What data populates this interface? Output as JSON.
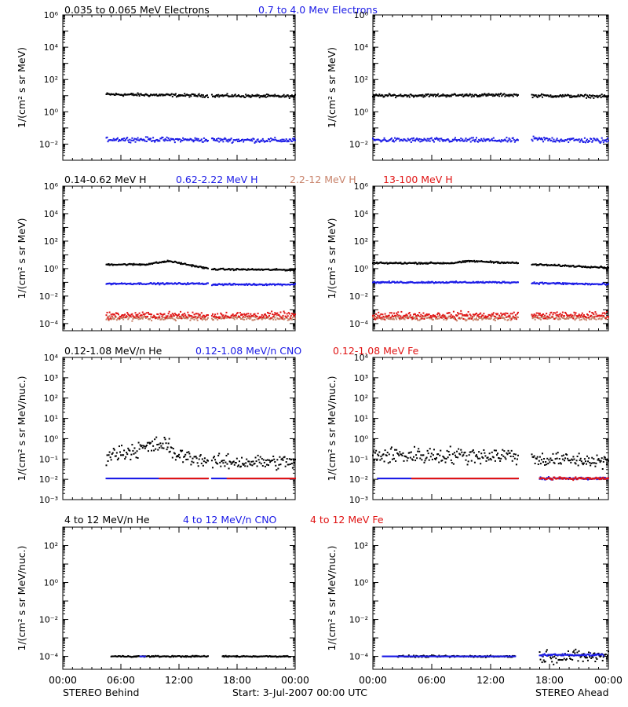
{
  "colors": {
    "black": "#000000",
    "blue": "#1a1ae6",
    "salmon": "#c8826a",
    "red": "#e01414"
  },
  "rows": [
    {
      "labels": [
        {
          "text": "0.035 to 0.065 MeV Electrons",
          "color": "black"
        },
        {
          "text": "0.7 to 4.0 Mev Electrons",
          "color": "blue"
        }
      ],
      "ylabel": "1/(cm² s sr MeV)"
    },
    {
      "labels": [
        {
          "text": "0.14-0.62 MeV H",
          "color": "black"
        },
        {
          "text": "0.62-2.22 MeV H",
          "color": "blue"
        },
        {
          "text": "2.2-12 MeV H",
          "color": "salmon"
        },
        {
          "text": "13-100 MeV H",
          "color": "red"
        }
      ],
      "ylabel": "1/(cm² s sr MeV)"
    },
    {
      "labels": [
        {
          "text": "0.12-1.08 MeV/n He",
          "color": "black"
        },
        {
          "text": "0.12-1.08 MeV/n CNO",
          "color": "blue"
        },
        {
          "text": "0.12-1.08 MeV Fe",
          "color": "red"
        }
      ],
      "ylabel": "1/(cm² s sr MeV/nuc.)"
    },
    {
      "labels": [
        {
          "text": "4 to 12 MeV/n He",
          "color": "black"
        },
        {
          "text": "4 to 12 MeV/n CNO",
          "color": "blue"
        },
        {
          "text": "4 to 12 MeV Fe",
          "color": "red"
        }
      ],
      "ylabel": "1/(cm² s sr MeV/nuc.)"
    }
  ],
  "x_ticks": [
    "00:00",
    "06:00",
    "12:00",
    "18:00",
    "00:00"
  ],
  "footer": {
    "left": "STEREO Behind",
    "center": "Start:  3-Jul-2007 00:00 UTC",
    "right": "STEREO Ahead"
  },
  "chart_data": [
    {
      "type": "scatter",
      "panel": "STEREO Behind electrons",
      "log_y": true,
      "ylim": [
        0.001,
        1000000
      ],
      "xlim": [
        0,
        24
      ],
      "y_ticks": [
        "10⁻²",
        "10⁰",
        "10²",
        "10⁴",
        "10⁶"
      ],
      "series": [
        {
          "name": "0.035 to 0.065 MeV Electrons",
          "color": "black",
          "segments": [
            {
              "x": [
                4.5,
                15.0
              ],
              "y": [
                12,
                10
              ],
              "scatter": 0.08
            },
            {
              "x": [
                15.4,
                24.0
              ],
              "y": [
                10,
                9
              ],
              "scatter": 0.08
            }
          ]
        },
        {
          "name": "0.7 to 4.0 Mev Electrons",
          "color": "blue",
          "segments": [
            {
              "x": [
                4.5,
                15.0
              ],
              "y": [
                0.02,
                0.018
              ],
              "scatter": 0.12
            },
            {
              "x": [
                15.4,
                24.0
              ],
              "y": [
                0.018,
                0.017
              ],
              "scatter": 0.12
            }
          ]
        }
      ]
    },
    {
      "type": "scatter",
      "panel": "STEREO Ahead electrons",
      "log_y": true,
      "ylim": [
        0.001,
        1000000
      ],
      "xlim": [
        0,
        24
      ],
      "y_ticks": [
        "10⁻²",
        "10⁰",
        "10²",
        "10⁴",
        "10⁶"
      ],
      "series": [
        {
          "name": "0.035 to 0.065 MeV Electrons",
          "color": "black",
          "segments": [
            {
              "x": [
                0.0,
                14.8
              ],
              "y": [
                10,
                11
              ],
              "scatter": 0.08
            },
            {
              "x": [
                16.2,
                24.0
              ],
              "y": [
                10,
                9
              ],
              "scatter": 0.08
            }
          ]
        },
        {
          "name": "0.7 to 4.0 Mev Electrons",
          "color": "blue",
          "segments": [
            {
              "x": [
                0.0,
                14.8
              ],
              "y": [
                0.018,
                0.017
              ],
              "scatter": 0.12
            },
            {
              "x": [
                16.2,
                24.0
              ],
              "y": [
                0.02,
                0.016
              ],
              "scatter": 0.14
            }
          ]
        }
      ]
    },
    {
      "type": "scatter",
      "panel": "STEREO Behind protons",
      "log_y": true,
      "ylim": [
        3e-05,
        1000000
      ],
      "xlim": [
        0,
        24
      ],
      "y_ticks": [
        "10⁻⁴",
        "10⁻²",
        "10⁰",
        "10²",
        "10⁴",
        "10⁶"
      ],
      "series": [
        {
          "name": "0.14-0.62 MeV H",
          "color": "black",
          "segments": [
            {
              "x": [
                4.5,
                8.5
              ],
              "y": [
                2.0,
                2.0
              ],
              "scatter": 0.05
            },
            {
              "x": [
                8.5,
                11.0
              ],
              "y": [
                2.0,
                3.5
              ],
              "scatter": 0.05
            },
            {
              "x": [
                11.0,
                15.0
              ],
              "y": [
                3.5,
                1.0
              ],
              "scatter": 0.05
            },
            {
              "x": [
                15.4,
                24.0
              ],
              "y": [
                0.9,
                0.8
              ],
              "scatter": 0.05
            }
          ]
        },
        {
          "name": "0.62-2.22 MeV H",
          "color": "blue",
          "segments": [
            {
              "x": [
                4.5,
                15.0
              ],
              "y": [
                0.08,
                0.08
              ],
              "scatter": 0.05
            },
            {
              "x": [
                15.4,
                24.0
              ],
              "y": [
                0.07,
                0.07
              ],
              "scatter": 0.05
            }
          ]
        },
        {
          "name": "2.2-12 MeV H",
          "color": "salmon",
          "segments": [
            {
              "x": [
                4.5,
                15.0
              ],
              "y": [
                0.00025,
                0.00025
              ],
              "scatter": 0.15
            },
            {
              "x": [
                15.4,
                24.0
              ],
              "y": [
                0.00025,
                0.00025
              ],
              "scatter": 0.15
            }
          ]
        },
        {
          "name": "13-100 MeV H",
          "color": "red",
          "segments": [
            {
              "x": [
                4.5,
                15.0
              ],
              "y": [
                0.0004,
                0.0004
              ],
              "scatter": 0.2
            },
            {
              "x": [
                15.4,
                24.0
              ],
              "y": [
                0.0004,
                0.0004
              ],
              "scatter": 0.2
            }
          ]
        }
      ]
    },
    {
      "type": "scatter",
      "panel": "STEREO Ahead protons",
      "log_y": true,
      "ylim": [
        3e-05,
        1000000
      ],
      "xlim": [
        0,
        24
      ],
      "y_ticks": [
        "10⁻⁴",
        "10⁻²",
        "10⁰",
        "10²",
        "10⁴",
        "10⁶"
      ],
      "series": [
        {
          "name": "0.14-0.62 MeV H",
          "color": "black",
          "segments": [
            {
              "x": [
                0.0,
                8.0
              ],
              "y": [
                2.5,
                2.5
              ],
              "scatter": 0.05
            },
            {
              "x": [
                8.0,
                10.0
              ],
              "y": [
                2.5,
                3.5
              ],
              "scatter": 0.05
            },
            {
              "x": [
                10.0,
                14.8
              ],
              "y": [
                3.5,
                2.5
              ],
              "scatter": 0.05
            },
            {
              "x": [
                16.2,
                24.0
              ],
              "y": [
                2.0,
                1.2
              ],
              "scatter": 0.05
            }
          ]
        },
        {
          "name": "0.62-2.22 MeV H",
          "color": "blue",
          "segments": [
            {
              "x": [
                0.0,
                14.8
              ],
              "y": [
                0.1,
                0.1
              ],
              "scatter": 0.05
            },
            {
              "x": [
                16.2,
                24.0
              ],
              "y": [
                0.09,
                0.07
              ],
              "scatter": 0.06
            }
          ]
        },
        {
          "name": "2.2-12 MeV H",
          "color": "salmon",
          "segments": [
            {
              "x": [
                0.0,
                14.8
              ],
              "y": [
                0.00025,
                0.00025
              ],
              "scatter": 0.15
            },
            {
              "x": [
                16.2,
                24.0
              ],
              "y": [
                0.00025,
                0.00025
              ],
              "scatter": 0.15
            }
          ]
        },
        {
          "name": "13-100 MeV H",
          "color": "red",
          "segments": [
            {
              "x": [
                0.0,
                14.8
              ],
              "y": [
                0.0004,
                0.0004
              ],
              "scatter": 0.22
            },
            {
              "x": [
                16.2,
                24.0
              ],
              "y": [
                0.0004,
                0.0004
              ],
              "scatter": 0.22
            }
          ]
        }
      ]
    },
    {
      "type": "scatter",
      "panel": "STEREO Behind heavy ions low",
      "log_y": true,
      "ylim": [
        0.001,
        10000
      ],
      "xlim": [
        0,
        24
      ],
      "y_ticks": [
        "10⁻³",
        "10⁻²",
        "10⁻¹",
        "10⁰",
        "10¹",
        "10²",
        "10³",
        "10⁴"
      ],
      "series": [
        {
          "name": "0.12-1.08 MeV/n He",
          "color": "black",
          "segments": [
            {
              "x": [
                4.5,
                11.0
              ],
              "y": [
                0.15,
                0.6
              ],
              "scatter": 0.35
            },
            {
              "x": [
                11.0,
                15.0
              ],
              "y": [
                0.2,
                0.08
              ],
              "scatter": 0.3
            },
            {
              "x": [
                15.4,
                24.0
              ],
              "y": [
                0.07,
                0.07
              ],
              "scatter": 0.3
            }
          ]
        },
        {
          "name": "0.12-1.08 MeV/n CNO",
          "color": "blue",
          "segments": [
            {
              "x": [
                4.5,
                15.0
              ],
              "y": [
                0.011,
                0.011
              ],
              "scatter": 0.0
            },
            {
              "x": [
                15.4,
                24.0
              ],
              "y": [
                0.011,
                0.011
              ],
              "scatter": 0.0
            }
          ]
        },
        {
          "name": "0.12-1.08 MeV Fe",
          "color": "red",
          "segments": [
            {
              "x": [
                10.0,
                15.0
              ],
              "y": [
                0.011,
                0.011
              ],
              "scatter": 0.0
            },
            {
              "x": [
                17.0,
                24.0
              ],
              "y": [
                0.011,
                0.011
              ],
              "scatter": 0.0
            }
          ]
        }
      ]
    },
    {
      "type": "scatter",
      "panel": "STEREO Ahead heavy ions low",
      "log_y": true,
      "ylim": [
        0.001,
        10000
      ],
      "xlim": [
        0,
        24
      ],
      "y_ticks": [
        "10⁻³",
        "10⁻²",
        "10⁻¹",
        "10⁰",
        "10¹",
        "10²",
        "10³",
        "10⁴"
      ],
      "series": [
        {
          "name": "0.12-1.08 MeV/n He",
          "color": "black",
          "segments": [
            {
              "x": [
                0.0,
                14.8
              ],
              "y": [
                0.15,
                0.15
              ],
              "scatter": 0.35
            },
            {
              "x": [
                16.2,
                24.0
              ],
              "y": [
                0.1,
                0.08
              ],
              "scatter": 0.3
            }
          ]
        },
        {
          "name": "0.12-1.08 MeV/n CNO",
          "color": "blue",
          "segments": [
            {
              "x": [
                0.5,
                14.8
              ],
              "y": [
                0.011,
                0.011
              ],
              "scatter": 0.0
            },
            {
              "x": [
                17.0,
                24.0
              ],
              "y": [
                0.011,
                0.011
              ],
              "scatter": 0.05
            }
          ]
        },
        {
          "name": "0.12-1.08 MeV Fe",
          "color": "red",
          "segments": [
            {
              "x": [
                4.0,
                14.8
              ],
              "y": [
                0.011,
                0.011
              ],
              "scatter": 0.0
            },
            {
              "x": [
                17.0,
                24.0
              ],
              "y": [
                0.011,
                0.011
              ],
              "scatter": 0.05
            }
          ]
        }
      ]
    },
    {
      "type": "scatter",
      "panel": "STEREO Behind heavy ions high",
      "log_y": true,
      "ylim": [
        2e-05,
        1000
      ],
      "xlim": [
        0,
        24
      ],
      "y_ticks": [
        "10⁻⁴",
        "10⁻²",
        "10⁰",
        "10²"
      ],
      "series": [
        {
          "name": "4 to 12 MeV/n He",
          "color": "black",
          "segments": [
            {
              "x": [
                5.0,
                15.0
              ],
              "y": [
                0.0001,
                0.0001
              ],
              "scatter": 0.03
            },
            {
              "x": [
                16.5,
                23.5
              ],
              "y": [
                0.0001,
                0.0001
              ],
              "scatter": 0.03
            }
          ]
        },
        {
          "name": "4 to 12 MeV/n CNO",
          "color": "blue",
          "segments": [
            {
              "x": [
                8.0,
                8.5
              ],
              "y": [
                0.0001,
                0.0001
              ],
              "scatter": 0.0
            }
          ]
        }
      ]
    },
    {
      "type": "scatter",
      "panel": "STEREO Ahead heavy ions high",
      "log_y": true,
      "ylim": [
        2e-05,
        1000
      ],
      "xlim": [
        0,
        24
      ],
      "y_ticks": [
        "10⁻⁴",
        "10⁻²",
        "10⁰",
        "10²"
      ],
      "series": [
        {
          "name": "4 to 12 MeV/n He",
          "color": "black",
          "segments": [
            {
              "x": [
                2.5,
                14.5
              ],
              "y": [
                0.0001,
                0.0001
              ],
              "scatter": 0.04
            },
            {
              "x": [
                17.0,
                24.0
              ],
              "y": [
                0.0001,
                0.0001
              ],
              "scatter": 0.3
            }
          ]
        },
        {
          "name": "4 to 12 MeV/n CNO",
          "color": "blue",
          "segments": [
            {
              "x": [
                1.0,
                14.5
              ],
              "y": [
                0.0001,
                0.0001
              ],
              "scatter": 0.0
            },
            {
              "x": [
                17.0,
                23.5
              ],
              "y": [
                0.00012,
                0.00012
              ],
              "scatter": 0.05
            }
          ]
        }
      ]
    }
  ]
}
